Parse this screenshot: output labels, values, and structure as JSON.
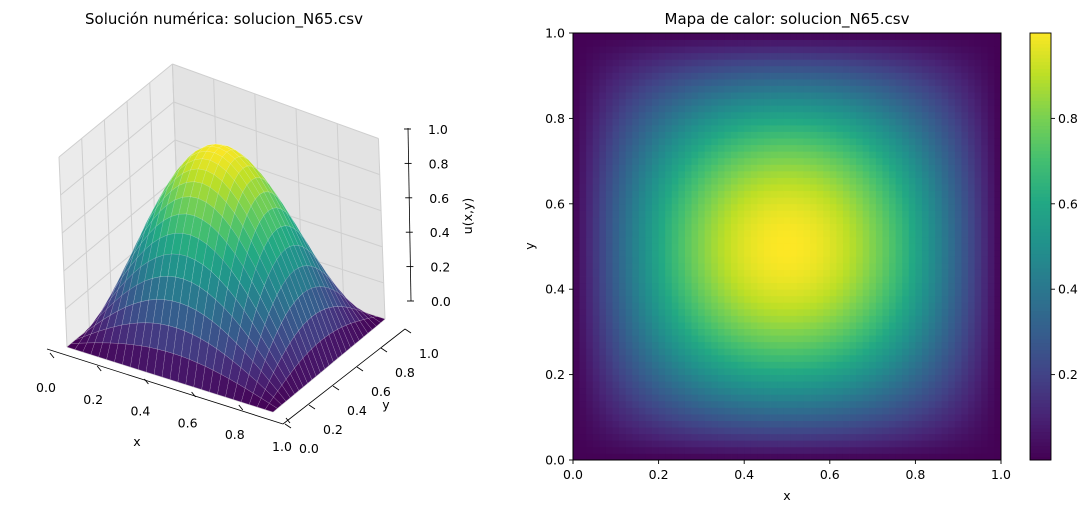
{
  "chart_data": [
    {
      "type": "surface",
      "title": "Solución numérica: solucion_N65.csv",
      "xlabel": "x",
      "ylabel": "y",
      "zlabel": "u(x,y)",
      "function": "sin(pi*x)*sin(pi*y)",
      "grid_points": 65,
      "xlim": [
        0,
        1
      ],
      "ylim": [
        0,
        1
      ],
      "zlim": [
        0,
        1
      ],
      "x_ticks": [
        "0.0",
        "0.2",
        "0.4",
        "0.6",
        "0.8",
        "1.0"
      ],
      "y_ticks": [
        "0.0",
        "0.2",
        "0.4",
        "0.6",
        "0.8",
        "1.0"
      ],
      "z_ticks": [
        "0.0",
        "0.2",
        "0.4",
        "0.6",
        "0.8",
        "1.0"
      ],
      "colormap": "viridis",
      "grid": true
    },
    {
      "type": "heatmap",
      "title": "Mapa de calor: solucion_N65.csv",
      "xlabel": "x",
      "ylabel": "y",
      "function": "sin(pi*x)*sin(pi*y)",
      "grid_points": 65,
      "xlim": [
        0,
        1
      ],
      "ylim": [
        0,
        1
      ],
      "x_ticks": [
        "0.0",
        "0.2",
        "0.4",
        "0.6",
        "0.8",
        "1.0"
      ],
      "y_ticks": [
        "0.0",
        "0.2",
        "0.4",
        "0.6",
        "0.8",
        "1.0"
      ],
      "colorbar_ticks": [
        "0.2",
        "0.4",
        "0.6",
        "0.8"
      ],
      "colorbar_values": [
        0.2,
        0.4,
        0.6,
        0.8
      ],
      "value_range": [
        0,
        1
      ],
      "colormap": "viridis"
    }
  ]
}
